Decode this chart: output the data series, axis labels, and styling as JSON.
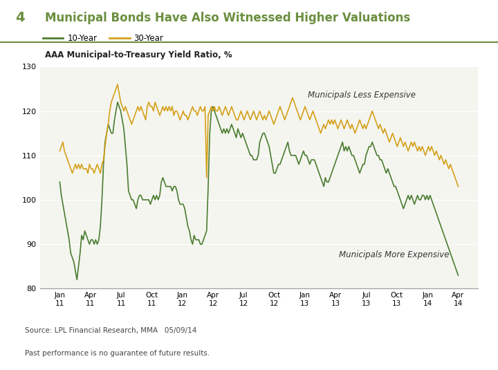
{
  "title_number": "4",
  "title_text": "Municipal Bonds Have Also Witnessed Higher Valuations",
  "subtitle": "AAA Municipal-to-Treasury Yield Ratio, %",
  "legend_10y": "10-Year",
  "legend_30y": "30-Year",
  "color_10y": "#4a7c2f",
  "color_30y": "#d4a017",
  "ylim": [
    80,
    130
  ],
  "yticks": [
    80,
    90,
    100,
    110,
    120,
    130
  ],
  "xlabel_top": [
    "Jan\n11",
    "Apr\n11",
    "Jul\n11",
    "Oct\n11",
    "Jan\n12",
    "Apr\n12",
    "Jul\n12",
    "Oct\n12",
    "Jan\n13",
    "Apr\n13",
    "Jul\n13",
    "Oct\n13",
    "Jan\n14",
    "Apr\n14"
  ],
  "annotation_less": "Municipals Less Expensive",
  "annotation_more": "Municipals More Expensive",
  "source": "Source: LPL Financial Research, MMA   05/09/14",
  "disclaimer": "Past performance is no guarantee of future results.",
  "bg_color": "#f5f5f0",
  "title_color": "#6b8e3e",
  "10y_data": [
    104,
    101,
    99,
    97,
    95,
    93,
    91,
    88,
    87,
    86,
    84,
    82,
    85,
    88,
    92,
    91,
    93,
    92,
    91,
    90,
    91,
    91,
    90,
    91,
    90,
    91,
    94,
    100,
    108,
    113,
    115,
    117,
    116,
    115,
    115,
    118,
    120,
    122,
    121,
    120,
    118,
    116,
    112,
    108,
    102,
    101,
    100,
    100,
    99,
    98,
    100,
    101,
    101,
    100,
    100,
    100,
    100,
    100,
    99,
    100,
    101,
    100,
    101,
    100,
    101,
    104,
    105,
    104,
    103,
    103,
    103,
    103,
    102,
    103,
    103,
    102,
    100,
    99,
    99,
    99,
    98,
    96,
    94,
    93,
    91,
    90,
    92,
    91,
    91,
    91,
    90,
    90,
    91,
    92,
    93,
    103,
    115,
    120,
    121,
    120,
    119,
    118,
    117,
    116,
    115,
    116,
    115,
    116,
    115,
    116,
    117,
    116,
    115,
    114,
    116,
    115,
    114,
    115,
    114,
    113,
    112,
    111,
    110,
    110,
    109,
    109,
    109,
    110,
    113,
    114,
    115,
    115,
    114,
    113,
    112,
    110,
    108,
    106,
    106,
    107,
    108,
    108,
    109,
    110,
    111,
    112,
    113,
    111,
    110,
    110,
    110,
    110,
    109,
    108,
    109,
    110,
    111,
    110,
    110,
    109,
    108,
    109,
    109,
    109,
    108,
    107,
    106,
    105,
    104,
    103,
    105,
    104,
    104,
    105,
    106,
    107,
    108,
    109,
    110,
    111,
    112,
    113,
    111,
    112,
    111,
    112,
    111,
    110,
    110,
    109,
    108,
    107,
    106,
    107,
    108,
    108,
    110,
    111,
    112,
    112,
    113,
    112,
    111,
    110,
    110,
    109,
    109,
    108,
    107,
    106,
    107,
    106,
    105,
    104,
    103,
    103,
    102,
    101,
    100,
    99,
    98,
    99,
    100,
    101,
    100,
    101,
    100,
    99,
    100,
    101,
    100,
    100,
    101,
    101,
    100,
    101,
    100,
    101,
    100,
    99,
    98,
    97,
    96,
    95,
    94,
    93,
    92,
    91,
    90,
    89,
    88,
    87,
    86,
    85,
    84,
    83
  ],
  "30y_data": [
    111,
    112,
    113,
    111,
    110,
    109,
    108,
    107,
    106,
    107,
    108,
    107,
    108,
    107,
    108,
    107,
    107,
    107,
    106,
    108,
    107,
    107,
    106,
    107,
    108,
    107,
    106,
    108,
    109,
    112,
    115,
    117,
    120,
    122,
    123,
    124,
    125,
    126,
    124,
    122,
    121,
    120,
    121,
    120,
    119,
    118,
    117,
    118,
    119,
    120,
    121,
    120,
    121,
    120,
    119,
    118,
    121,
    122,
    121,
    121,
    120,
    122,
    121,
    120,
    119,
    120,
    121,
    120,
    121,
    120,
    121,
    120,
    121,
    119,
    120,
    120,
    119,
    118,
    119,
    120,
    119,
    119,
    118,
    119,
    120,
    121,
    120,
    120,
    119,
    120,
    121,
    120,
    120,
    121,
    105,
    119,
    120,
    121,
    120,
    121,
    120,
    120,
    121,
    120,
    119,
    120,
    121,
    120,
    119,
    120,
    121,
    120,
    119,
    118,
    118,
    119,
    120,
    119,
    118,
    119,
    120,
    119,
    118,
    119,
    120,
    119,
    118,
    119,
    120,
    119,
    118,
    119,
    118,
    119,
    120,
    119,
    118,
    117,
    118,
    119,
    120,
    121,
    120,
    119,
    118,
    119,
    120,
    121,
    122,
    123,
    122,
    121,
    120,
    119,
    118,
    119,
    120,
    121,
    120,
    119,
    118,
    119,
    120,
    119,
    118,
    117,
    116,
    115,
    116,
    117,
    116,
    117,
    118,
    117,
    118,
    117,
    118,
    117,
    116,
    117,
    118,
    117,
    116,
    117,
    118,
    117,
    116,
    117,
    116,
    115,
    116,
    117,
    118,
    117,
    116,
    117,
    116,
    117,
    118,
    119,
    120,
    119,
    118,
    117,
    116,
    117,
    116,
    115,
    116,
    115,
    114,
    113,
    114,
    115,
    114,
    113,
    112,
    113,
    114,
    113,
    112,
    113,
    112,
    111,
    112,
    113,
    112,
    113,
    112,
    111,
    112,
    111,
    112,
    111,
    110,
    111,
    112,
    111,
    112,
    111,
    110,
    111,
    110,
    109,
    110,
    109,
    108,
    109,
    108,
    107,
    108,
    107,
    106,
    105,
    104,
    103
  ]
}
